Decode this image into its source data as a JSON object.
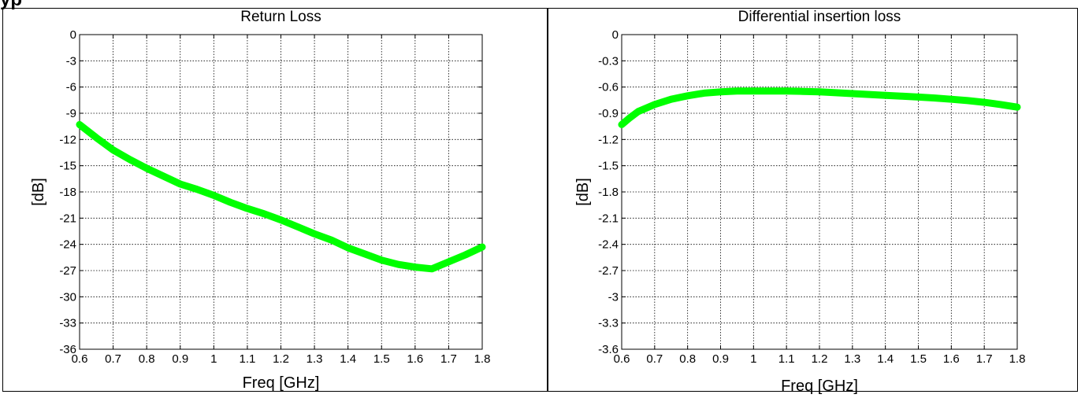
{
  "page": {
    "heading": "yp"
  },
  "colors": {
    "series": "#00ff00",
    "grid": "#000000",
    "background": "#ffffff"
  },
  "chart_data": [
    {
      "type": "line",
      "title": "Return Loss",
      "xlabel": "Freq [GHz]",
      "ylabel": "[dB]",
      "xlim": [
        0.6,
        1.8
      ],
      "ylim": [
        -36,
        0
      ],
      "grid": true,
      "xticks": [
        0.6,
        0.7,
        0.8,
        0.9,
        1,
        1.1,
        1.2,
        1.3,
        1.4,
        1.5,
        1.6,
        1.7,
        1.8
      ],
      "xtick_labels": [
        "0.6",
        "0.7",
        "0.8",
        "0.9",
        "1",
        "1.1",
        "1.2",
        "1.3",
        "1.4",
        "1.5",
        "1.6",
        "1.7",
        "1.8"
      ],
      "yticks": [
        0,
        -3,
        -6,
        -9,
        -12,
        -15,
        -18,
        -21,
        -24,
        -27,
        -30,
        -33,
        -36
      ],
      "ytick_labels": [
        "0",
        "-3",
        "-6",
        "-9",
        "-12",
        "-15",
        "-18",
        "-21",
        "-24",
        "-27",
        "-30",
        "-33",
        "-36"
      ],
      "series": [
        {
          "x": [
            0.6,
            0.65,
            0.7,
            0.75,
            0.8,
            0.85,
            0.9,
            0.95,
            1.0,
            1.05,
            1.1,
            1.15,
            1.2,
            1.25,
            1.3,
            1.35,
            1.4,
            1.45,
            1.5,
            1.55,
            1.6,
            1.65,
            1.7,
            1.75,
            1.8
          ],
          "y": [
            -10.3,
            -11.8,
            -13.2,
            -14.3,
            -15.3,
            -16.2,
            -17.1,
            -17.7,
            -18.4,
            -19.2,
            -19.9,
            -20.5,
            -21.2,
            -22.0,
            -22.8,
            -23.5,
            -24.4,
            -25.1,
            -25.8,
            -26.3,
            -26.6,
            -26.8,
            -26.0,
            -25.2,
            -24.3
          ]
        }
      ]
    },
    {
      "type": "line",
      "title": "Differential insertion loss",
      "xlabel": "Freq [GHz]",
      "ylabel": "[dB]",
      "xlim": [
        0.6,
        1.8
      ],
      "ylim": [
        -3.6,
        0
      ],
      "grid": true,
      "xticks": [
        0.6,
        0.7,
        0.8,
        0.9,
        1,
        1.1,
        1.2,
        1.3,
        1.4,
        1.5,
        1.6,
        1.7,
        1.8
      ],
      "xtick_labels": [
        "0.6",
        "0.7",
        "0.8",
        "0.9",
        "1",
        "1.1",
        "1.2",
        "1.3",
        "1.4",
        "1.5",
        "1.6",
        "1.7",
        "1.8"
      ],
      "yticks": [
        0,
        -0.3,
        -0.6,
        -0.9,
        -1.2,
        -1.5,
        -1.8,
        -2.1,
        -2.4,
        -2.7,
        -3,
        -3.3,
        -3.6
      ],
      "ytick_labels": [
        "0",
        "-0.3",
        "-0.6",
        "-0.9",
        "-1.2",
        "-1.5",
        "-1.8",
        "-2.1",
        "-2.4",
        "-2.7",
        "-3",
        "-3.3",
        "-3.6"
      ],
      "series": [
        {
          "x": [
            0.6,
            0.625,
            0.65,
            0.7,
            0.75,
            0.8,
            0.85,
            0.9,
            0.95,
            1.0,
            1.05,
            1.1,
            1.15,
            1.2,
            1.25,
            1.3,
            1.35,
            1.4,
            1.45,
            1.5,
            1.55,
            1.6,
            1.65,
            1.7,
            1.75,
            1.8
          ],
          "y": [
            -1.03,
            -0.95,
            -0.88,
            -0.8,
            -0.74,
            -0.7,
            -0.67,
            -0.655,
            -0.645,
            -0.645,
            -0.645,
            -0.645,
            -0.65,
            -0.655,
            -0.665,
            -0.675,
            -0.685,
            -0.695,
            -0.705,
            -0.715,
            -0.725,
            -0.74,
            -0.755,
            -0.775,
            -0.8,
            -0.83
          ]
        }
      ]
    }
  ]
}
